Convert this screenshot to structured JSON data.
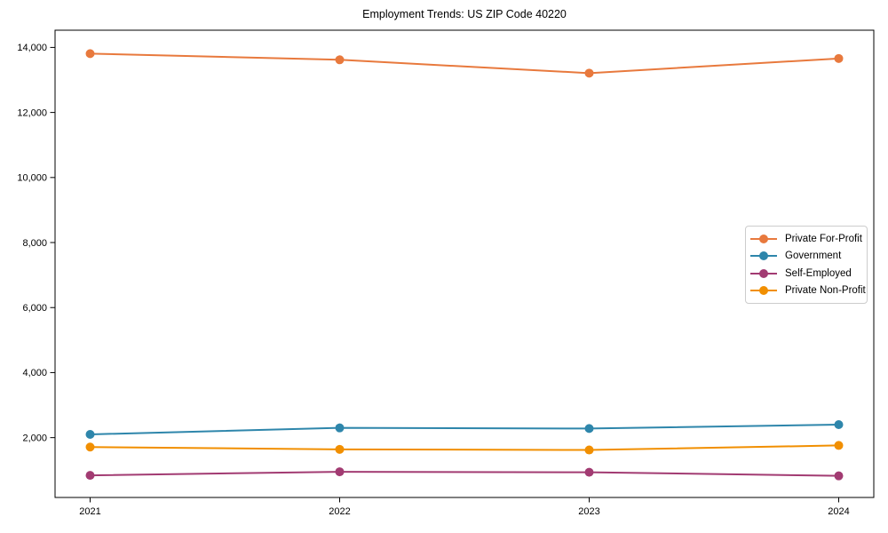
{
  "chart_data": {
    "type": "line",
    "title": "Employment Trends: US ZIP Code 40220",
    "xlabel": "",
    "ylabel": "",
    "categories": [
      "2021",
      "2022",
      "2023",
      "2024"
    ],
    "series": [
      {
        "name": "Private For-Profit",
        "color": "#E8793D",
        "values": [
          13810,
          13620,
          13210,
          13660
        ]
      },
      {
        "name": "Government",
        "color": "#2E86AB",
        "values": [
          2100,
          2300,
          2280,
          2400
        ]
      },
      {
        "name": "Self-Employed",
        "color": "#A23B72",
        "values": [
          840,
          950,
          935,
          825
        ]
      },
      {
        "name": "Private Non-Profit",
        "color": "#F18F01",
        "values": [
          1710,
          1640,
          1620,
          1760
        ]
      }
    ],
    "ylim": [
      160,
      14530
    ],
    "y_ticks": [
      2000,
      4000,
      6000,
      8000,
      10000,
      12000,
      14000
    ],
    "grid": false,
    "legend_position": "center right",
    "marker": "circle",
    "frame_color": "#000000",
    "tick_label_color": "#000000"
  }
}
